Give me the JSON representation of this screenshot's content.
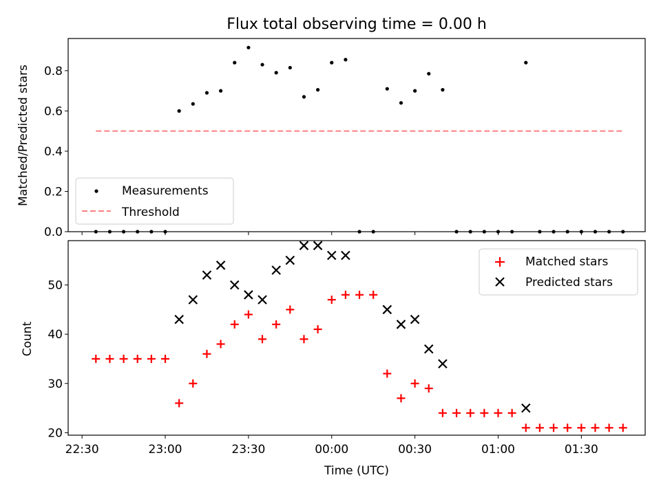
{
  "chart_data": [
    {
      "type": "scatter",
      "title": "Flux total observing time = 0.00 h",
      "xlabel": "",
      "ylabel": "Matched/Predicted stars",
      "xlim": [
        "22:25",
        "01:53"
      ],
      "ylim": [
        0,
        0.96
      ],
      "yticks": [
        "0.0",
        "0.2",
        "0.4",
        "0.6",
        "0.8"
      ],
      "grid": false,
      "legend_position": "lower-left",
      "series": [
        {
          "name": "Measurements",
          "marker": "dot",
          "color": "#000000",
          "points": [
            [
              "22:35",
              0
            ],
            [
              "22:40",
              0
            ],
            [
              "22:45",
              0
            ],
            [
              "22:50",
              0
            ],
            [
              "22:55",
              0
            ],
            [
              "23:00",
              0
            ],
            [
              "23:05",
              0.6
            ],
            [
              "23:10",
              0.635
            ],
            [
              "23:15",
              0.69
            ],
            [
              "23:20",
              0.7
            ],
            [
              "23:25",
              0.84
            ],
            [
              "23:30",
              0.915
            ],
            [
              "23:35",
              0.83
            ],
            [
              "23:40",
              0.79
            ],
            [
              "23:45",
              0.815
            ],
            [
              "23:50",
              0.67
            ],
            [
              "23:55",
              0.705
            ],
            [
              "00:00",
              0.84
            ],
            [
              "00:05",
              0.855
            ],
            [
              "00:10",
              0
            ],
            [
              "00:15",
              0
            ],
            [
              "00:20",
              0.71
            ],
            [
              "00:25",
              0.64
            ],
            [
              "00:30",
              0.7
            ],
            [
              "00:35",
              0.785
            ],
            [
              "00:40",
              0.705
            ],
            [
              "00:45",
              0
            ],
            [
              "00:50",
              0
            ],
            [
              "00:55",
              0
            ],
            [
              "01:00",
              0
            ],
            [
              "01:05",
              0
            ],
            [
              "01:10",
              0.84
            ],
            [
              "01:15",
              0
            ],
            [
              "01:20",
              0
            ],
            [
              "01:25",
              0
            ],
            [
              "01:30",
              0
            ],
            [
              "01:35",
              0
            ],
            [
              "01:40",
              0
            ],
            [
              "01:45",
              0
            ]
          ]
        },
        {
          "name": "Threshold",
          "marker": "dashed-line",
          "color": "#ff7f7f",
          "points": [
            [
              "22:35",
              0.5
            ],
            [
              "01:45",
              0.5
            ]
          ]
        }
      ]
    },
    {
      "type": "scatter",
      "title": "",
      "xlabel": "Time (UTC)",
      "ylabel": "Count",
      "xlim": [
        "22:25",
        "01:53"
      ],
      "ylim": [
        19.5,
        59
      ],
      "xticks": [
        "22:30",
        "23:00",
        "23:30",
        "00:00",
        "00:30",
        "01:00",
        "01:30"
      ],
      "yticks": [
        "20",
        "30",
        "40",
        "50"
      ],
      "grid": false,
      "legend_position": "upper-right",
      "series": [
        {
          "name": "Matched stars",
          "marker": "plus",
          "color": "#ff0000",
          "points": [
            [
              "22:35",
              35
            ],
            [
              "22:40",
              35
            ],
            [
              "22:45",
              35
            ],
            [
              "22:50",
              35
            ],
            [
              "22:55",
              35
            ],
            [
              "23:00",
              35
            ],
            [
              "23:05",
              26
            ],
            [
              "23:10",
              30
            ],
            [
              "23:15",
              36
            ],
            [
              "23:20",
              38
            ],
            [
              "23:25",
              42
            ],
            [
              "23:30",
              44
            ],
            [
              "23:35",
              39
            ],
            [
              "23:40",
              42
            ],
            [
              "23:45",
              45
            ],
            [
              "23:50",
              39
            ],
            [
              "23:55",
              41
            ],
            [
              "00:00",
              47
            ],
            [
              "00:05",
              48
            ],
            [
              "00:10",
              48
            ],
            [
              "00:15",
              48
            ],
            [
              "00:20",
              32
            ],
            [
              "00:25",
              27
            ],
            [
              "00:30",
              30
            ],
            [
              "00:35",
              29
            ],
            [
              "00:40",
              24
            ],
            [
              "00:45",
              24
            ],
            [
              "00:50",
              24
            ],
            [
              "00:55",
              24
            ],
            [
              "01:00",
              24
            ],
            [
              "01:05",
              24
            ],
            [
              "01:10",
              21
            ],
            [
              "01:15",
              21
            ],
            [
              "01:20",
              21
            ],
            [
              "01:25",
              21
            ],
            [
              "01:30",
              21
            ],
            [
              "01:35",
              21
            ],
            [
              "01:40",
              21
            ],
            [
              "01:45",
              21
            ]
          ]
        },
        {
          "name": "Predicted stars",
          "marker": "x",
          "color": "#000000",
          "points": [
            [
              "23:05",
              43
            ],
            [
              "23:10",
              47
            ],
            [
              "23:15",
              52
            ],
            [
              "23:20",
              54
            ],
            [
              "23:25",
              50
            ],
            [
              "23:30",
              48
            ],
            [
              "23:35",
              47
            ],
            [
              "23:40",
              53
            ],
            [
              "23:45",
              55
            ],
            [
              "23:50",
              58
            ],
            [
              "23:55",
              58
            ],
            [
              "00:00",
              56
            ],
            [
              "00:05",
              56
            ],
            [
              "00:20",
              45
            ],
            [
              "00:25",
              42
            ],
            [
              "00:30",
              43
            ],
            [
              "00:35",
              37
            ],
            [
              "00:40",
              34
            ],
            [
              "01:10",
              25
            ]
          ]
        }
      ]
    }
  ]
}
